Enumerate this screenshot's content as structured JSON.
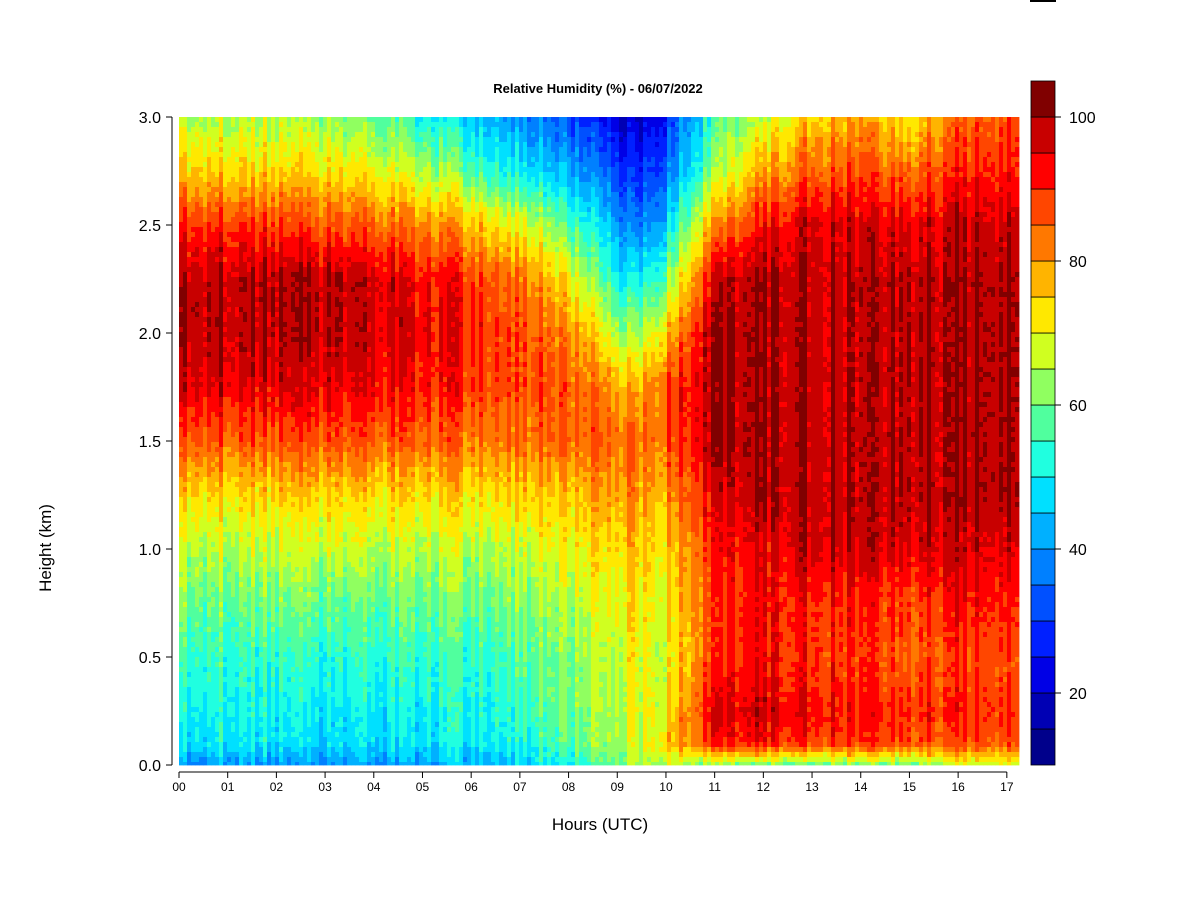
{
  "chart_data": {
    "type": "heatmap",
    "title": "Relative Humidity (%) - 06/07/2022",
    "xlabel": "Hours (UTC)",
    "ylabel": "Height (km)",
    "xlim": [
      0,
      17.25
    ],
    "ylim": [
      0,
      3.0
    ],
    "x_ticks": [
      "00",
      "01",
      "02",
      "03",
      "04",
      "05",
      "06",
      "07",
      "08",
      "09",
      "10",
      "11",
      "12",
      "13",
      "14",
      "15",
      "16",
      "17"
    ],
    "y_ticks": [
      "0.0",
      "0.5",
      "1.0",
      "1.5",
      "2.0",
      "2.5",
      "3.0"
    ],
    "y_tick_values": [
      0,
      0.5,
      1.0,
      1.5,
      2.0,
      2.5,
      3.0
    ],
    "colorbar": {
      "range": [
        10,
        100
      ],
      "step": 5,
      "ticks": [
        "20",
        "40",
        "60",
        "80",
        "100"
      ],
      "tick_values": [
        20,
        40,
        60,
        80,
        100
      ],
      "colors": [
        "#00008B",
        "#0000B4",
        "#0000E6",
        "#0020FF",
        "#0050FF",
        "#0080FF",
        "#00B0FF",
        "#00E0FF",
        "#20FFE0",
        "#50FF9E",
        "#90FF60",
        "#D0FF20",
        "#FFE800",
        "#FFB400",
        "#FF7800",
        "#FF4600",
        "#FF0000",
        "#C80000",
        "#800000"
      ]
    },
    "grid": false,
    "x_hours": [
      0,
      1,
      2,
      3,
      4,
      5,
      6,
      7,
      8,
      9,
      9.3,
      10,
      11,
      12,
      13,
      14,
      15,
      16,
      17.25
    ],
    "heights_km": [
      0.0,
      0.1,
      0.25,
      0.5,
      0.75,
      1.0,
      1.25,
      1.5,
      1.75,
      2.0,
      2.25,
      2.5,
      2.75,
      3.0
    ],
    "rh_profiles": [
      [
        38,
        48,
        50,
        55,
        60,
        66,
        74,
        86,
        96,
        99,
        99,
        90,
        75,
        65
      ],
      [
        42,
        50,
        52,
        55,
        60,
        66,
        74,
        86,
        96,
        99,
        99,
        90,
        75,
        65
      ],
      [
        40,
        48,
        50,
        54,
        60,
        66,
        74,
        86,
        95,
        99,
        99,
        88,
        74,
        64
      ],
      [
        38,
        46,
        48,
        52,
        58,
        66,
        74,
        86,
        94,
        98,
        98,
        86,
        72,
        62
      ],
      [
        40,
        47,
        49,
        53,
        58,
        65,
        73,
        85,
        93,
        96,
        96,
        84,
        70,
        58
      ],
      [
        42,
        48,
        50,
        55,
        60,
        66,
        74,
        85,
        92,
        95,
        94,
        82,
        66,
        52
      ],
      [
        44,
        50,
        52,
        55,
        60,
        66,
        74,
        84,
        90,
        92,
        90,
        78,
        58,
        46
      ],
      [
        46,
        52,
        55,
        58,
        62,
        68,
        75,
        84,
        88,
        88,
        84,
        70,
        50,
        40
      ],
      [
        52,
        58,
        60,
        62,
        65,
        70,
        76,
        85,
        86,
        82,
        72,
        58,
        42,
        32
      ],
      [
        60,
        64,
        66,
        68,
        70,
        74,
        80,
        85,
        80,
        66,
        52,
        42,
        32,
        22
      ],
      [
        64,
        66,
        68,
        70,
        72,
        76,
        80,
        85,
        76,
        62,
        48,
        36,
        26,
        18
      ],
      [
        68,
        76,
        72,
        70,
        72,
        75,
        80,
        86,
        88,
        76,
        60,
        46,
        36,
        28
      ],
      [
        62,
        90,
        94,
        88,
        88,
        90,
        94,
        99,
        99,
        99,
        96,
        80,
        62,
        55
      ],
      [
        60,
        92,
        96,
        92,
        92,
        94,
        99,
        99,
        99,
        99,
        99,
        92,
        78,
        66
      ],
      [
        62,
        90,
        94,
        90,
        92,
        98,
        99,
        99,
        99,
        99,
        99,
        97,
        86,
        76
      ],
      [
        62,
        90,
        92,
        90,
        92,
        98,
        99,
        99,
        99,
        99,
        99,
        97,
        88,
        80
      ],
      [
        62,
        88,
        90,
        86,
        88,
        96,
        99,
        99,
        99,
        99,
        99,
        95,
        84,
        72
      ],
      [
        66,
        86,
        90,
        88,
        92,
        96,
        99,
        99,
        99,
        99,
        99,
        97,
        90,
        84
      ],
      [
        68,
        86,
        88,
        86,
        90,
        94,
        99,
        99,
        99,
        99,
        99,
        96,
        90,
        86
      ]
    ]
  }
}
